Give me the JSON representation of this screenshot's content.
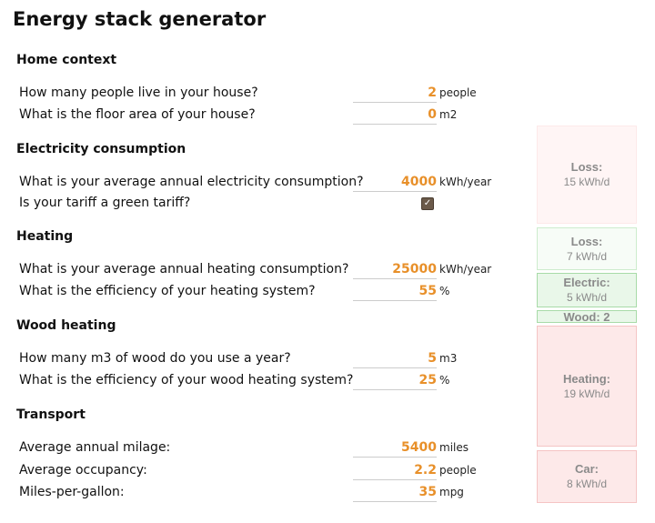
{
  "title": "Energy stack generator",
  "sections": {
    "home": "Home context",
    "electricity": "Electricity consumption",
    "heating": "Heating",
    "wood": "Wood heating",
    "transport": "Transport"
  },
  "home": {
    "people": {
      "question": "How many people live in your house?",
      "value": "2",
      "unit": "people"
    },
    "area": {
      "question": "What is the floor area of your house?",
      "value": "0",
      "unit": "m2"
    }
  },
  "electricity": {
    "consumption": {
      "question": "What is your average annual electricity consumption?",
      "value": "4000",
      "unit": "kWh/year"
    },
    "green": {
      "question": "Is your tariff a green tariff?",
      "checked": true
    }
  },
  "heating": {
    "consumption": {
      "question": "What is your average annual heating consumption?",
      "value": "25000",
      "unit": "kWh/year"
    },
    "efficiency": {
      "question": "What is the efficiency of your heating system?",
      "value": "55",
      "unit": "%"
    }
  },
  "wood": {
    "volume": {
      "question": "How many m3 of wood do you use a year?",
      "value": "5",
      "unit": "m3"
    },
    "efficiency": {
      "question": "What is the efficiency of your wood heating system?",
      "value": "25",
      "unit": "%"
    }
  },
  "transport": {
    "milage": {
      "question": "Average annual milage:",
      "value": "5400",
      "unit": "miles"
    },
    "occupancy": {
      "question": "Average occupancy:",
      "value": "2.2",
      "unit": "people"
    },
    "mpg": {
      "question": "Miles-per-gallon:",
      "value": "35",
      "unit": "mpg"
    }
  },
  "stack": {
    "colors": {
      "red_fill": "#fde9e9",
      "red_border": "#f5c4c4",
      "green_fill": "#e9f7e9",
      "green_border": "#a8dba8"
    },
    "blocks": [
      {
        "label": "Loss:",
        "value": "15 kWh/d",
        "kwh_per_day": 15,
        "theme": "red-light"
      },
      {
        "label": "Loss:",
        "value": "7 kWh/d",
        "kwh_per_day": 7,
        "theme": "green-light"
      },
      {
        "label": "Electric:",
        "value": "5 kWh/d",
        "kwh_per_day": 5,
        "theme": "green"
      },
      {
        "label": "Wood: 2",
        "value": "",
        "kwh_per_day": 2,
        "theme": "green"
      },
      {
        "label": "Heating:",
        "value": "19 kWh/d",
        "kwh_per_day": 19,
        "theme": "red"
      },
      {
        "label": "Car:",
        "value": "8 kWh/d",
        "kwh_per_day": 8,
        "theme": "red"
      }
    ]
  }
}
